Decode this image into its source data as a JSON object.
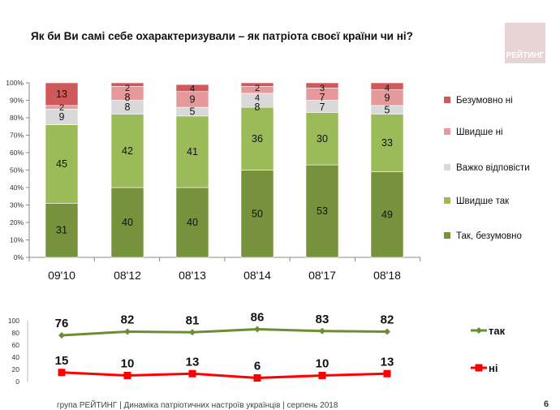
{
  "title": "Як  би Ви самі себе охарактеризували – як патріота своєї країни чи ні?",
  "logo_text": "РЕЙТИНГ",
  "footer": "група РЕЙТИНГ  | Динаміка патріотичних настроїв українців |  серпень 2018",
  "page_number": "6",
  "chart_data": [
    {
      "type": "bar",
      "stacked": true,
      "categories": [
        "09'10",
        "08'12",
        "08'13",
        "08'14",
        "08'17",
        "08'18"
      ],
      "ylim": [
        0,
        100
      ],
      "yticks": [
        "0%",
        "10%",
        "20%",
        "30%",
        "40%",
        "50%",
        "60%",
        "70%",
        "80%",
        "90%",
        "100%"
      ],
      "legend_position": "right",
      "series": [
        {
          "name": "Так, безумовно",
          "color": "#76923c",
          "values": [
            31,
            40,
            40,
            50,
            53,
            49
          ]
        },
        {
          "name": "Швидше так",
          "color": "#9bbb59",
          "values": [
            45,
            42,
            41,
            36,
            30,
            33
          ]
        },
        {
          "name": "Важко відповісти",
          "color": "#d9d9d9",
          "values": [
            9,
            8,
            5,
            8,
            7,
            5
          ]
        },
        {
          "name": "Швидше ні",
          "color": "#e6999b",
          "values": [
            2,
            8,
            9,
            4,
            7,
            9
          ]
        },
        {
          "name": "Безумовно ні",
          "color": "#d0595c",
          "values": [
            13,
            2,
            4,
            2,
            3,
            4
          ]
        }
      ]
    },
    {
      "type": "line",
      "categories": [
        "09'10",
        "08'12",
        "08'13",
        "08'14",
        "08'17",
        "08'18"
      ],
      "ylim": [
        0,
        100
      ],
      "yticks": [
        "0",
        "20",
        "40",
        "60",
        "80",
        "100"
      ],
      "legend_position": "right",
      "series": [
        {
          "name": "так",
          "color": "#6b8e35",
          "marker": "diamond",
          "values": [
            76,
            82,
            81,
            86,
            83,
            82
          ]
        },
        {
          "name": "ні",
          "color": "#ff0000",
          "marker": "square",
          "values": [
            15,
            10,
            13,
            6,
            10,
            13
          ]
        }
      ]
    }
  ]
}
